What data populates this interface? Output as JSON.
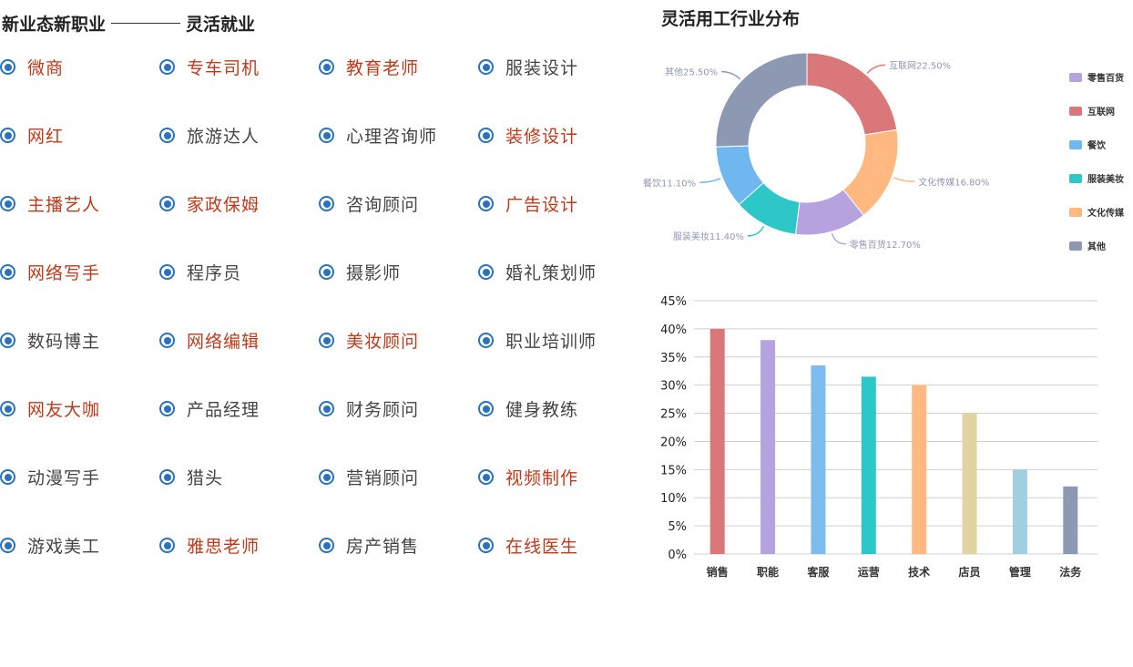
{
  "left": {
    "title_a": "新业态新职业",
    "title_b": "灵活就业",
    "jobs": [
      {
        "label": "微商",
        "hot": true
      },
      {
        "label": "专车司机",
        "hot": true
      },
      {
        "label": "教育老师",
        "hot": true
      },
      {
        "label": "服装设计",
        "hot": false
      },
      {
        "label": "网红",
        "hot": true
      },
      {
        "label": "旅游达人",
        "hot": false
      },
      {
        "label": "心理咨询师",
        "hot": false
      },
      {
        "label": "装修设计",
        "hot": true
      },
      {
        "label": "主播艺人",
        "hot": true
      },
      {
        "label": "家政保姆",
        "hot": true
      },
      {
        "label": "咨询顾问",
        "hot": false
      },
      {
        "label": "广告设计",
        "hot": true
      },
      {
        "label": "网络写手",
        "hot": true
      },
      {
        "label": "程序员",
        "hot": false
      },
      {
        "label": "摄影师",
        "hot": false
      },
      {
        "label": "婚礼策划师",
        "hot": false
      },
      {
        "label": "数码博主",
        "hot": false
      },
      {
        "label": "网络编辑",
        "hot": true
      },
      {
        "label": "美妆顾问",
        "hot": true
      },
      {
        "label": "职业培训师",
        "hot": false
      },
      {
        "label": "网友大咖",
        "hot": true
      },
      {
        "label": "产品经理",
        "hot": false
      },
      {
        "label": "财务顾问",
        "hot": false
      },
      {
        "label": "健身教练",
        "hot": false
      },
      {
        "label": "动漫写手",
        "hot": false
      },
      {
        "label": "猎头",
        "hot": false
      },
      {
        "label": "营销顾问",
        "hot": false
      },
      {
        "label": "视频制作",
        "hot": true
      },
      {
        "label": "游戏美工",
        "hot": false
      },
      {
        "label": "雅思老师",
        "hot": true
      },
      {
        "label": "房产销售",
        "hot": false
      },
      {
        "label": "在线医生",
        "hot": true
      }
    ],
    "hot_color": "#c0391b",
    "bullet_color": "#2a72c0"
  },
  "right": {
    "title": "灵活用工行业分布"
  },
  "chart_data": [
    {
      "type": "pie",
      "donut": true,
      "title": "灵活用工行业分布",
      "series": [
        {
          "name": "互联网",
          "value": 22.5,
          "label": "互联网22.50%",
          "color": "#d9777b"
        },
        {
          "name": "文化传媒",
          "value": 16.8,
          "label": "文化传媒16.80%",
          "color": "#ffb980"
        },
        {
          "name": "零售百货",
          "value": 12.7,
          "label": "零售百货12.70%",
          "color": "#b6a2de"
        },
        {
          "name": "服装美妆",
          "value": 11.4,
          "label": "服装美妆11.40%",
          "color": "#2ec7c9"
        },
        {
          "name": "餐饮",
          "value": 11.1,
          "label": "餐饮11.10%",
          "color": "#6fb7ef"
        },
        {
          "name": "其他",
          "value": 25.5,
          "label": "其他25.50%",
          "color": "#8d98b3"
        }
      ],
      "legend": [
        "零售百货",
        "互联网",
        "餐饮",
        "服装美妆",
        "文化传媒",
        "其他"
      ],
      "legend_position": "right"
    },
    {
      "type": "bar",
      "categories": [
        "销售",
        "职能",
        "客服",
        "运营",
        "技术",
        "店员",
        "管理",
        "法务"
      ],
      "values": [
        40,
        38,
        33.5,
        31.5,
        30,
        25,
        15,
        12
      ],
      "colors": [
        "#d9777b",
        "#b6a2de",
        "#7cbcef",
        "#2ec7c9",
        "#ffb980",
        "#e0d4a0",
        "#a0d0e0",
        "#8d98b3"
      ],
      "ylim": [
        0,
        45
      ],
      "yticks": [
        "0%",
        "5%",
        "10%",
        "15%",
        "20%",
        "25%",
        "30%",
        "35%",
        "40%",
        "45%"
      ],
      "grid": true
    }
  ]
}
